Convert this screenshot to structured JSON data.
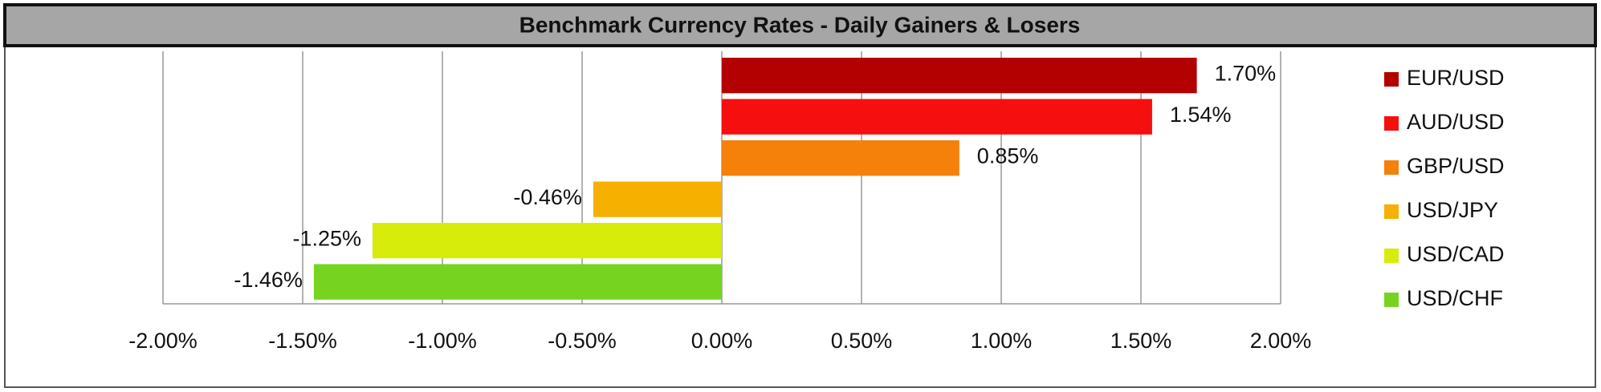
{
  "chart_data": {
    "type": "bar",
    "orientation": "horizontal",
    "title": "Benchmark Currency Rates - Daily Gainers & Losers",
    "categories": [
      "EUR/USD",
      "AUD/USD",
      "GBP/USD",
      "USD/JPY",
      "USD/CAD",
      "USD/CHF"
    ],
    "values": [
      1.7,
      1.54,
      0.85,
      -0.46,
      -1.25,
      -1.46
    ],
    "value_labels": [
      "1.70%",
      "1.54%",
      "0.85%",
      "-0.46%",
      "-1.25%",
      "-1.46%"
    ],
    "colors": [
      "#b30000",
      "#f50f0f",
      "#f5800a",
      "#f5b000",
      "#d8ec0c",
      "#76d420"
    ],
    "xlim": [
      -2,
      2
    ],
    "xticks": [
      {
        "value": -2,
        "label": "-2.00%"
      },
      {
        "value": -1.5,
        "label": "-1.50%"
      },
      {
        "value": -1,
        "label": "-1.00%"
      },
      {
        "value": -0.5,
        "label": "-0.50%"
      },
      {
        "value": 0,
        "label": "0.00%"
      },
      {
        "value": 0.5,
        "label": "0.50%"
      },
      {
        "value": 1,
        "label": "1.00%"
      },
      {
        "value": 1.5,
        "label": "1.50%"
      },
      {
        "value": 2,
        "label": "2.00%"
      }
    ],
    "grid": true,
    "legend": "right"
  }
}
